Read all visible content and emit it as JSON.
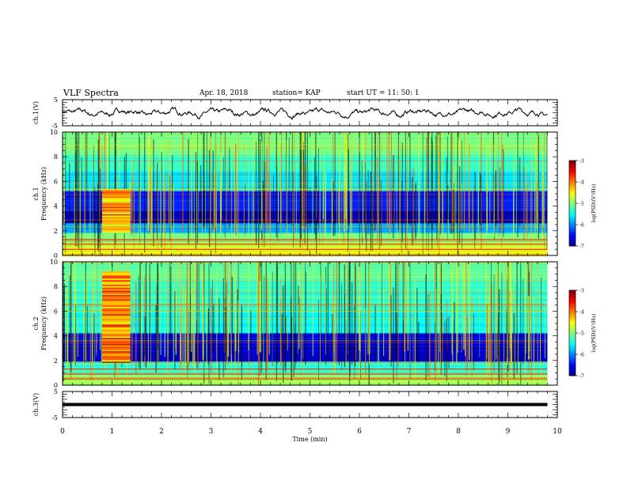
{
  "header": {
    "title": "VLF Spectra",
    "date": "Apr. 18, 2018",
    "station": "station= KAP",
    "start_ut": "start  UT  =    11: 50: 1"
  },
  "chart_data": [
    {
      "type": "line",
      "panel": "ch1-waveform",
      "ylabel": "ch.1(V)",
      "ylim": [
        -5,
        5
      ],
      "yticks": [
        "5",
        "-5"
      ],
      "xlim": [
        0,
        10
      ],
      "series": [
        {
          "trace": "waveform",
          "color": "#000000",
          "mean": 0.0,
          "amplitude": 1.2,
          "x_end": 9.8
        }
      ]
    },
    {
      "type": "heatmap",
      "panel": "ch1-spectrogram",
      "ylabel": "ch.1\nFrequency (kHz)",
      "ylim": [
        0,
        10
      ],
      "yticks": [
        "0",
        "2",
        "4",
        "6",
        "8",
        "10"
      ],
      "xlim": [
        0,
        10
      ],
      "x_end": 9.8,
      "colorbar": {
        "label": "log(PSD)(V²/Hz)",
        "range": [
          -7,
          -3
        ],
        "ticks": [
          "-3",
          "-4",
          "-5",
          "-6",
          "-7"
        ]
      },
      "bands": [
        {
          "f": [
            8.2,
            10
          ],
          "level": -5.0
        },
        {
          "f": [
            6.8,
            8.2
          ],
          "level": -5.3
        },
        {
          "f": [
            5.2,
            6.8
          ],
          "level": -5.6
        },
        {
          "f": [
            3.6,
            5.2
          ],
          "level": -6.4
        },
        {
          "f": [
            2.6,
            3.6
          ],
          "level": -6.8
        },
        {
          "f": [
            1.8,
            2.6
          ],
          "level": -5.8
        },
        {
          "f": [
            0.9,
            1.8
          ],
          "level": -5.0
        },
        {
          "f": [
            0.0,
            0.9
          ],
          "level": -4.6
        }
      ],
      "burst": {
        "t": [
          0.8,
          1.37
        ],
        "f": [
          1.8,
          5.3
        ],
        "level": -4.4
      }
    },
    {
      "type": "heatmap",
      "panel": "ch2-spectrogram",
      "ylabel": "ch.2\nFrequency (kHz)",
      "ylim": [
        0,
        10
      ],
      "yticks": [
        "0",
        "2",
        "4",
        "6",
        "8",
        "10"
      ],
      "xlim": [
        0,
        10
      ],
      "x_end": 9.8,
      "colorbar": {
        "label": "log(PSD)(V²/Hz)",
        "range": [
          -7,
          -3
        ],
        "ticks": [
          "-3",
          "-4",
          "-5",
          "-6",
          "-7"
        ]
      },
      "bands": [
        {
          "f": [
            8.5,
            10
          ],
          "level": -5.1
        },
        {
          "f": [
            6.0,
            8.5
          ],
          "level": -5.3
        },
        {
          "f": [
            4.2,
            6.0
          ],
          "level": -5.5
        },
        {
          "f": [
            3.3,
            4.2
          ],
          "level": -6.6
        },
        {
          "f": [
            1.9,
            3.3
          ],
          "level": -6.7
        },
        {
          "f": [
            0.8,
            1.9
          ],
          "level": -5.3
        },
        {
          "f": [
            0.0,
            0.8
          ],
          "level": -4.9
        }
      ],
      "burst": {
        "t": [
          0.8,
          1.37
        ],
        "f": [
          1.8,
          9.2
        ],
        "level": -4.2
      }
    },
    {
      "type": "line",
      "panel": "ch3-waveform",
      "ylabel": "ch.3(V)",
      "ylim": [
        -5,
        5
      ],
      "yticks": [
        "5",
        "-5"
      ],
      "xlim": [
        0,
        10
      ],
      "xlabel": "Time (min)",
      "xticks": [
        "0",
        "1",
        "2",
        "3",
        "4",
        "5",
        "6",
        "7",
        "8",
        "9",
        "10"
      ],
      "series": [
        {
          "trace": "flat",
          "color": "#000000",
          "value": 0.0,
          "x_end": 9.8
        }
      ]
    }
  ]
}
